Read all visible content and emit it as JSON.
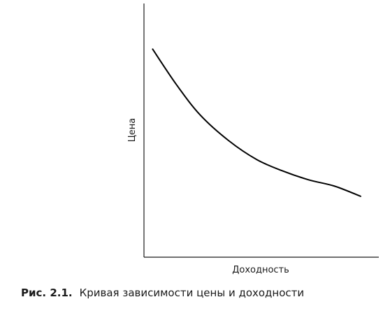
{
  "chart_data": {
    "type": "line",
    "title": "",
    "xlabel": "Доходность",
    "ylabel": "Цена",
    "xlim": [
      0,
      10
    ],
    "ylim": [
      0,
      10
    ],
    "grid": false,
    "series": [
      {
        "x": [
          0.4,
          1.5,
          2.6,
          3.9,
          5.2,
          6.4,
          7.6,
          8.8,
          10.0
        ],
        "y": [
          8.2,
          6.8,
          5.6,
          4.6,
          3.85,
          3.4,
          3.05,
          2.8,
          2.4
        ]
      }
    ]
  },
  "caption": {
    "number": "Рис. 2.1.",
    "text": "Кривая зависимости цены и доходности"
  }
}
